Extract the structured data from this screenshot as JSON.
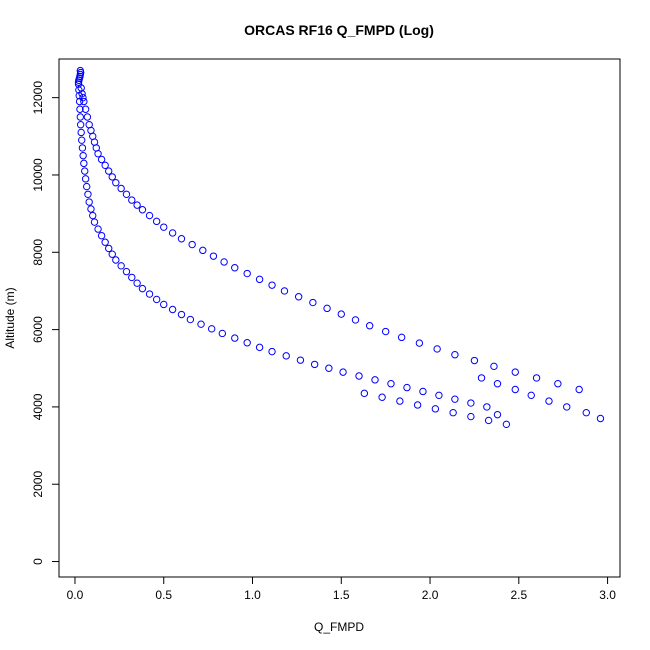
{
  "chart_data": {
    "type": "scatter",
    "title": "ORCAS RF16 Q_FMPD (Log)",
    "xlabel": "Q_FMPD",
    "ylabel": "Altitude (m)",
    "xlim": [
      -0.09,
      3.07
    ],
    "ylim": [
      -400,
      13000
    ],
    "xticks": [
      0.0,
      0.5,
      1.0,
      1.5,
      2.0,
      2.5,
      3.0
    ],
    "xtick_labels": [
      "0.0",
      "0.5",
      "1.0",
      "1.5",
      "2.0",
      "2.5",
      "3.0"
    ],
    "yticks": [
      0,
      2000,
      4000,
      6000,
      8000,
      10000,
      12000
    ],
    "ytick_labels": [
      "0",
      "2000",
      "4000",
      "6000",
      "8000",
      "10000",
      "12000"
    ],
    "marker": "open-circle",
    "color": "#0000ff",
    "grid": false,
    "legend": "none",
    "series": [
      {
        "points": [
          [
            0.02,
            12400
          ],
          [
            0.022,
            12450
          ],
          [
            0.025,
            12500
          ],
          [
            0.028,
            12550
          ],
          [
            0.03,
            12600
          ],
          [
            0.032,
            12650
          ],
          [
            0.03,
            12700
          ],
          [
            0.035,
            12250
          ],
          [
            0.04,
            12100
          ],
          [
            0.045,
            12000
          ],
          [
            0.05,
            11900
          ],
          [
            0.06,
            11700
          ],
          [
            0.07,
            11500
          ],
          [
            0.08,
            11300
          ],
          [
            0.09,
            11150
          ],
          [
            0.1,
            11000
          ],
          [
            0.11,
            10850
          ],
          [
            0.12,
            10700
          ],
          [
            0.13,
            10550
          ],
          [
            0.15,
            10400
          ],
          [
            0.17,
            10250
          ],
          [
            0.19,
            10100
          ],
          [
            0.21,
            9950
          ],
          [
            0.23,
            9800
          ],
          [
            0.26,
            9650
          ],
          [
            0.29,
            9500
          ],
          [
            0.32,
            9350
          ],
          [
            0.35,
            9220
          ],
          [
            0.38,
            9100
          ],
          [
            0.42,
            8950
          ],
          [
            0.46,
            8800
          ],
          [
            0.5,
            8650
          ],
          [
            0.55,
            8500
          ],
          [
            0.6,
            8350
          ],
          [
            0.66,
            8200
          ],
          [
            0.72,
            8050
          ],
          [
            0.78,
            7900
          ],
          [
            0.84,
            7750
          ],
          [
            0.9,
            7600
          ],
          [
            0.97,
            7450
          ],
          [
            1.04,
            7300
          ],
          [
            1.11,
            7150
          ],
          [
            1.18,
            7000
          ],
          [
            1.26,
            6850
          ],
          [
            1.34,
            6700
          ],
          [
            1.42,
            6550
          ],
          [
            1.5,
            6400
          ],
          [
            1.58,
            6250
          ],
          [
            1.66,
            6100
          ],
          [
            1.75,
            5950
          ],
          [
            1.84,
            5800
          ],
          [
            1.94,
            5650
          ],
          [
            2.04,
            5500
          ],
          [
            2.14,
            5350
          ],
          [
            2.25,
            5200
          ],
          [
            2.36,
            5050
          ],
          [
            2.48,
            4900
          ],
          [
            2.6,
            4750
          ],
          [
            2.72,
            4600
          ],
          [
            2.84,
            4450
          ],
          [
            2.96,
            3700
          ],
          [
            2.88,
            3850
          ],
          [
            2.77,
            4000
          ],
          [
            2.67,
            4150
          ],
          [
            2.57,
            4300
          ],
          [
            2.48,
            4450
          ],
          [
            2.38,
            4600
          ],
          [
            2.29,
            4750
          ]
        ]
      },
      {
        "points": [
          [
            0.02,
            12350
          ],
          [
            0.022,
            12200
          ],
          [
            0.024,
            12050
          ],
          [
            0.026,
            11900
          ],
          [
            0.028,
            11700
          ],
          [
            0.03,
            11500
          ],
          [
            0.032,
            11300
          ],
          [
            0.035,
            11100
          ],
          [
            0.038,
            10900
          ],
          [
            0.042,
            10700
          ],
          [
            0.046,
            10500
          ],
          [
            0.05,
            10300
          ],
          [
            0.055,
            10100
          ],
          [
            0.06,
            9900
          ],
          [
            0.066,
            9700
          ],
          [
            0.073,
            9500
          ],
          [
            0.08,
            9300
          ],
          [
            0.09,
            9120
          ],
          [
            0.1,
            8950
          ],
          [
            0.11,
            8780
          ],
          [
            0.13,
            8600
          ],
          [
            0.15,
            8430
          ],
          [
            0.17,
            8260
          ],
          [
            0.19,
            8100
          ],
          [
            0.21,
            7950
          ],
          [
            0.23,
            7800
          ],
          [
            0.26,
            7650
          ],
          [
            0.29,
            7500
          ],
          [
            0.32,
            7350
          ],
          [
            0.35,
            7200
          ],
          [
            0.38,
            7060
          ],
          [
            0.42,
            6920
          ],
          [
            0.46,
            6780
          ],
          [
            0.5,
            6650
          ],
          [
            0.55,
            6520
          ],
          [
            0.6,
            6390
          ],
          [
            0.65,
            6260
          ],
          [
            0.71,
            6140
          ],
          [
            0.77,
            6020
          ],
          [
            0.83,
            5900
          ],
          [
            0.9,
            5780
          ],
          [
            0.97,
            5660
          ],
          [
            1.04,
            5540
          ],
          [
            1.11,
            5430
          ],
          [
            1.19,
            5320
          ],
          [
            1.27,
            5210
          ],
          [
            1.35,
            5100
          ],
          [
            1.43,
            5000
          ],
          [
            1.51,
            4900
          ],
          [
            1.6,
            4800
          ],
          [
            1.69,
            4700
          ],
          [
            1.78,
            4600
          ],
          [
            1.87,
            4500
          ],
          [
            1.96,
            4400
          ],
          [
            2.05,
            4300
          ],
          [
            2.14,
            4200
          ],
          [
            2.23,
            4100
          ],
          [
            2.32,
            4000
          ],
          [
            2.38,
            3800
          ],
          [
            2.43,
            3550
          ],
          [
            2.33,
            3650
          ],
          [
            2.23,
            3750
          ],
          [
            2.13,
            3850
          ],
          [
            2.03,
            3950
          ],
          [
            1.93,
            4050
          ],
          [
            1.83,
            4150
          ],
          [
            1.73,
            4250
          ],
          [
            1.63,
            4350
          ]
        ]
      }
    ]
  }
}
